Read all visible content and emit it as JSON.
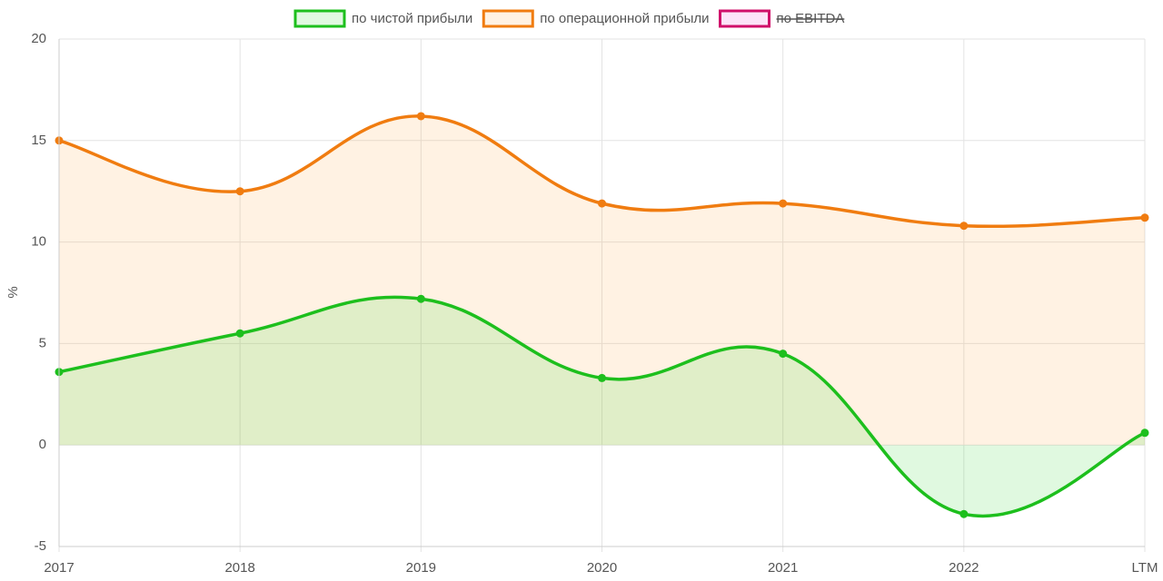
{
  "chart_data": {
    "type": "line",
    "ylabel": "%",
    "categories": [
      "2017",
      "2018",
      "2019",
      "2020",
      "2021",
      "2022",
      "LTM"
    ],
    "series": [
      {
        "name": "по чистой прибыли",
        "color": "#1dbf1d",
        "fill": "rgba(60,220,60,0.16)",
        "values": [
          3.6,
          5.5,
          7.2,
          3.3,
          4.5,
          -3.4,
          0.6
        ]
      },
      {
        "name": "по операционной прибыли",
        "color": "#f07c10",
        "fill": "rgba(255,160,60,0.14)",
        "values": [
          15,
          12.5,
          16.2,
          11.9,
          11.9,
          10.8,
          11.2
        ]
      }
    ],
    "hidden_legend": {
      "name": "по EBITDA",
      "color": "#d0106a",
      "fill": "rgba(240,120,220,0.2)"
    },
    "ylim": [
      -5,
      20
    ],
    "yticks": [
      -5,
      0,
      5,
      10,
      15,
      20
    ],
    "grid": true
  }
}
